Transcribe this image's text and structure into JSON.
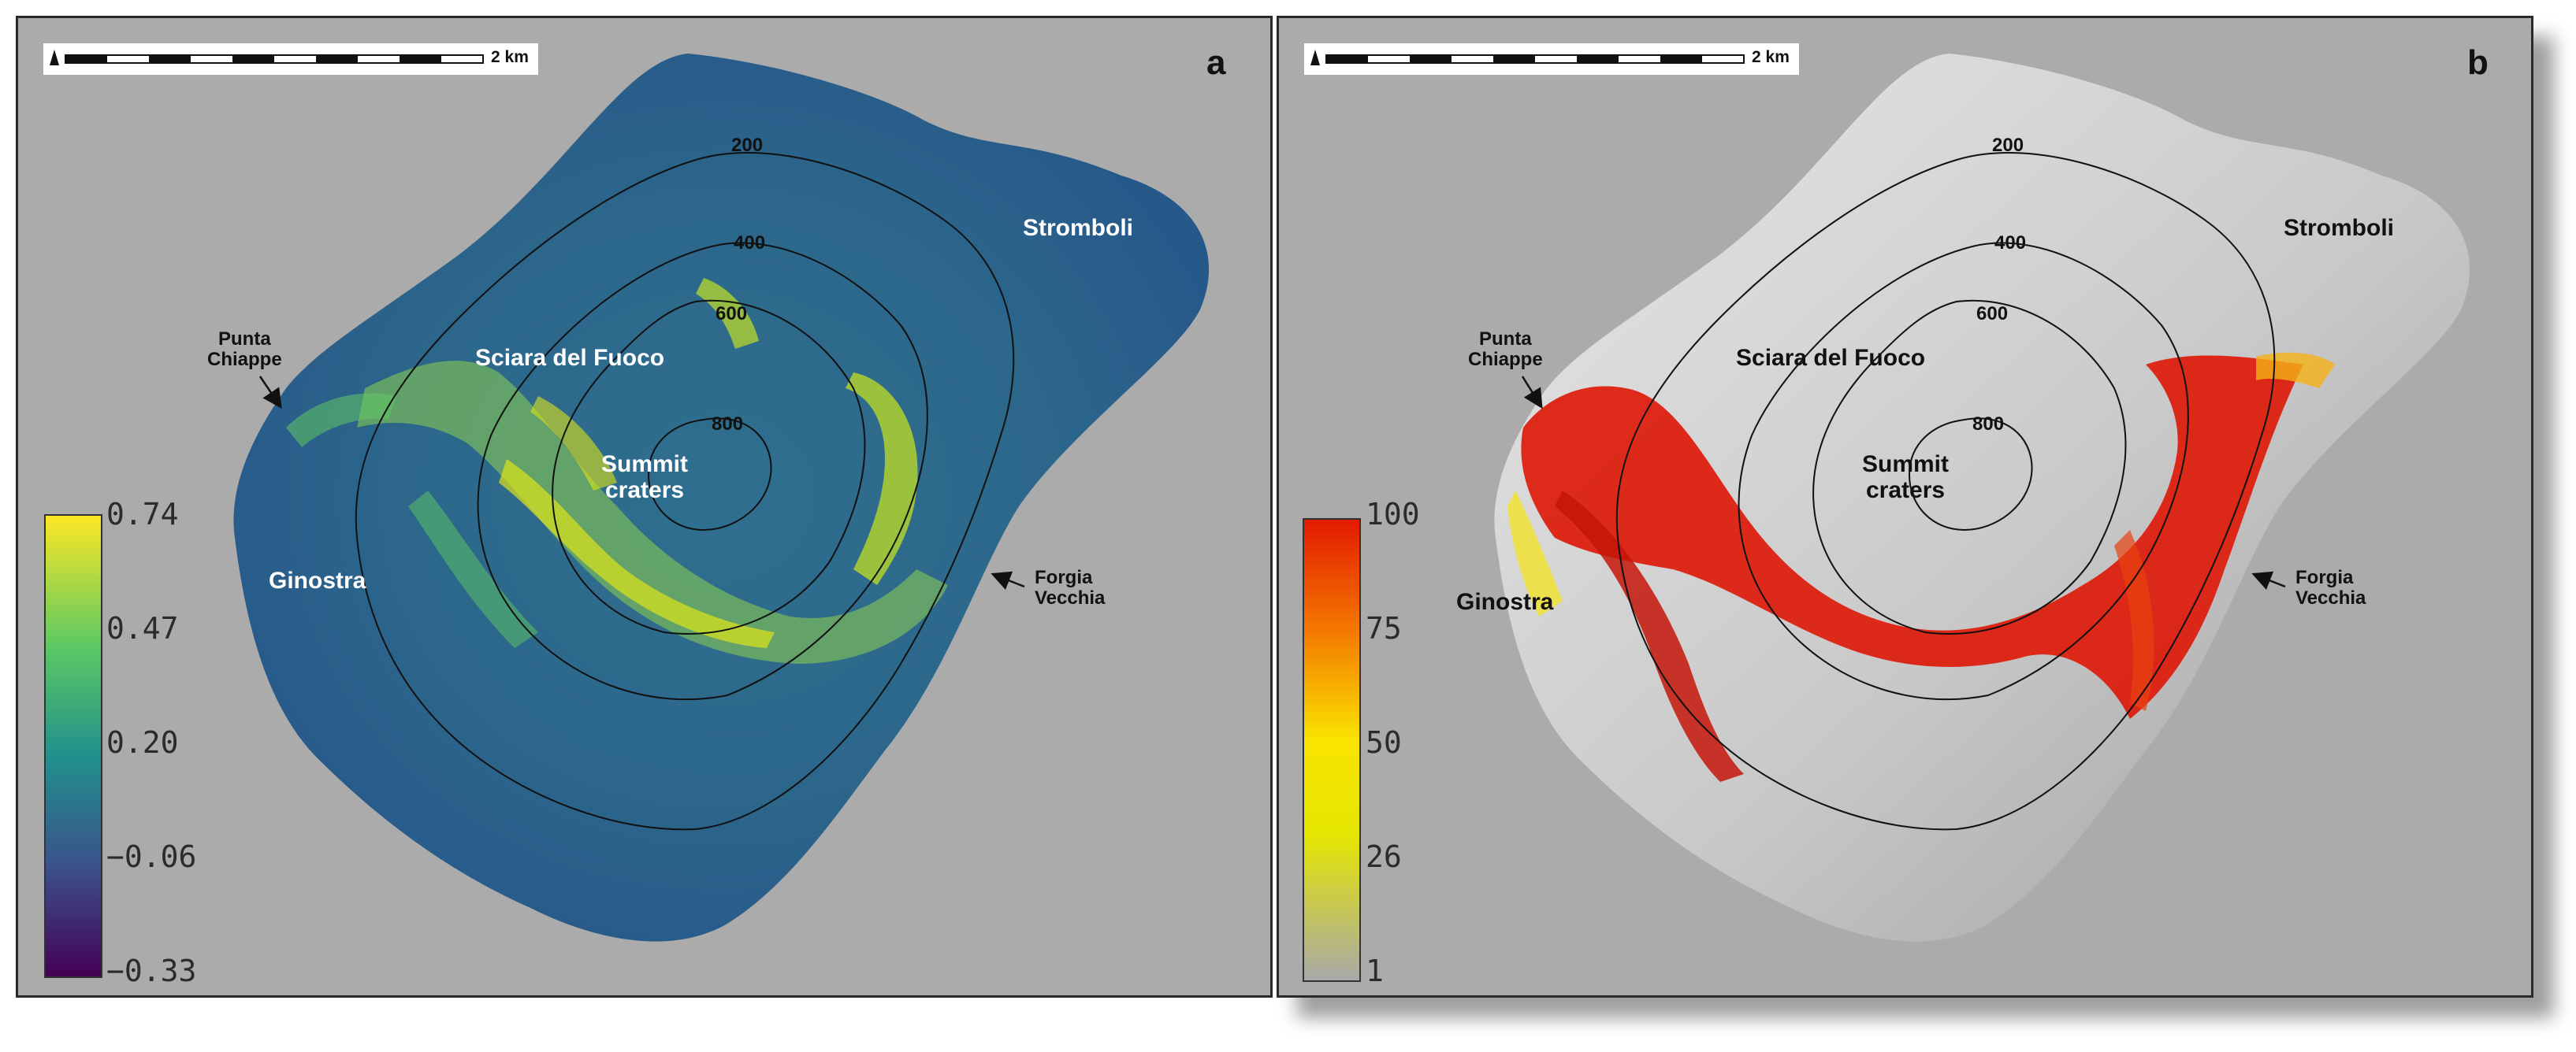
{
  "panel_a": {
    "letter": "a",
    "scale_label": "2 km",
    "north": "N",
    "colorbar": {
      "ticks": [
        "0.74",
        "0.47",
        "0.20",
        "−0.06",
        "−0.33"
      ],
      "colors": [
        "#fde725",
        "#5ec962",
        "#21918c",
        "#3b528b",
        "#440154"
      ]
    },
    "places": {
      "punta_chiappe": "Punta\nChiappe",
      "sciara": "Sciara del Fuoco",
      "summit": "Summit\ncraters",
      "stromboli": "Stromboli",
      "ginostra": "Ginostra",
      "forgia": "Forgia\nVecchia"
    },
    "contours": [
      "200",
      "400",
      "600",
      "800"
    ]
  },
  "panel_b": {
    "letter": "b",
    "scale_label": "2 km",
    "north": "N",
    "colorbar": {
      "ticks": [
        "100",
        "75",
        "50",
        "26",
        "1"
      ],
      "colors": [
        "#e31a00",
        "#f57c00",
        "#f9e400",
        "#e6e600",
        "#a8a8a8"
      ]
    },
    "places": {
      "punta_chiappe": "Punta\nChiappe",
      "sciara": "Sciara del Fuoco",
      "summit": "Summit\ncraters",
      "stromboli": "Stromboli",
      "ginostra": "Ginostra",
      "forgia": "Forgia\nVecchia"
    },
    "contours": [
      "200",
      "400",
      "600",
      "800"
    ]
  }
}
